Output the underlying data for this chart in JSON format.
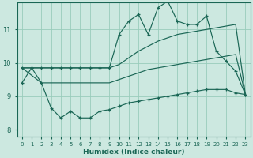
{
  "background_color": "#cce8e0",
  "grid_color": "#99ccbb",
  "line_color": "#1a6655",
  "xlabel": "Humidex (Indice chaleur)",
  "xlim": [
    -0.5,
    23.5
  ],
  "ylim": [
    7.8,
    11.8
  ],
  "yticks": [
    8,
    9,
    10,
    11
  ],
  "xticks": [
    0,
    1,
    2,
    3,
    4,
    5,
    6,
    7,
    8,
    9,
    10,
    11,
    12,
    13,
    14,
    15,
    16,
    17,
    18,
    19,
    20,
    21,
    22,
    23
  ],
  "line1_x": [
    0,
    1,
    2,
    3,
    4,
    5,
    6,
    7,
    8,
    9,
    10,
    11,
    12,
    13,
    14,
    15,
    16,
    17,
    18,
    19,
    20,
    21,
    22,
    23
  ],
  "line1_y": [
    9.85,
    9.85,
    9.85,
    9.85,
    9.85,
    9.85,
    9.85,
    9.85,
    9.85,
    9.85,
    10.85,
    11.25,
    11.45,
    10.85,
    11.65,
    11.85,
    11.25,
    11.15,
    11.15,
    11.4,
    10.35,
    10.05,
    9.75,
    9.05
  ],
  "line2_x": [
    0,
    1,
    2,
    3,
    4,
    5,
    6,
    7,
    8,
    9,
    10,
    11,
    12,
    13,
    14,
    15,
    16,
    17,
    18,
    19,
    20,
    21,
    22,
    23
  ],
  "line2_y": [
    9.85,
    9.85,
    9.85,
    9.85,
    9.85,
    9.85,
    9.85,
    9.85,
    9.85,
    9.85,
    9.95,
    10.15,
    10.35,
    10.5,
    10.65,
    10.75,
    10.85,
    10.9,
    10.95,
    11.0,
    11.05,
    11.1,
    11.15,
    9.05
  ],
  "line3_x": [
    0,
    2,
    7,
    9,
    10,
    11,
    12,
    13,
    14,
    15,
    16,
    17,
    18,
    19,
    20,
    21,
    22,
    23
  ],
  "line3_y": [
    9.85,
    9.4,
    9.4,
    9.4,
    9.5,
    9.6,
    9.7,
    9.8,
    9.85,
    9.9,
    9.95,
    10.0,
    10.05,
    10.1,
    10.15,
    10.2,
    10.25,
    9.05
  ],
  "line4_x": [
    0,
    1,
    2,
    3,
    4,
    5,
    6,
    7,
    8,
    9,
    10,
    11,
    12,
    13,
    14,
    15,
    16,
    17,
    18,
    19,
    20,
    21,
    22,
    23
  ],
  "line4_y": [
    9.4,
    9.85,
    9.4,
    8.65,
    8.35,
    8.55,
    8.35,
    8.35,
    8.55,
    8.6,
    8.7,
    8.8,
    8.85,
    8.9,
    8.95,
    9.0,
    9.05,
    9.1,
    9.15,
    9.2,
    9.2,
    9.2,
    9.1,
    9.05
  ]
}
